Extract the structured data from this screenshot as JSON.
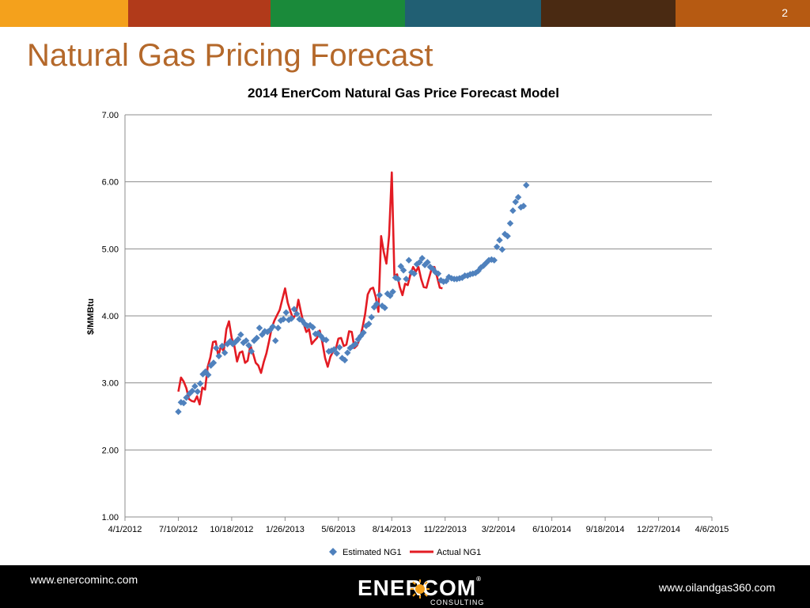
{
  "slide_number": "2",
  "slide_title": "Natural Gas Pricing Forecast",
  "top_bar_colors": [
    "#f4a11c",
    "#b13a1a",
    "#1a8a3a",
    "#215f73",
    "#4a2a12",
    "#b65a12"
  ],
  "footer": {
    "left_url": "www.enercominc.com",
    "right_url": "www.oilandgas360.com",
    "logo_text": "ENERCOM",
    "logo_registered": "®",
    "logo_sub": "CONSULTING"
  },
  "chart_data": {
    "type": "scatter",
    "title": "2014 EnerCom Natural Gas Price Forecast Model",
    "xlabel": "",
    "ylabel": "$/MMBtu",
    "ylim": [
      1.0,
      7.0
    ],
    "xlim": [
      "2012-04-01",
      "2015-04-06"
    ],
    "y_ticks": [
      "1.00",
      "2.00",
      "3.00",
      "4.00",
      "5.00",
      "6.00",
      "7.00"
    ],
    "x_ticks": [
      {
        "date": "2012-04-01",
        "label": "4/1/2012"
      },
      {
        "date": "2012-07-10",
        "label": "7/10/2012"
      },
      {
        "date": "2012-10-18",
        "label": "10/18/2012"
      },
      {
        "date": "2013-01-26",
        "label": "1/26/2013"
      },
      {
        "date": "2013-05-06",
        "label": "5/6/2013"
      },
      {
        "date": "2013-08-14",
        "label": "8/14/2013"
      },
      {
        "date": "2013-11-22",
        "label": "11/22/2013"
      },
      {
        "date": "2014-03-02",
        "label": "3/2/2014"
      },
      {
        "date": "2014-06-10",
        "label": "6/10/2014"
      },
      {
        "date": "2014-09-18",
        "label": "9/18/2014"
      },
      {
        "date": "2014-12-27",
        "label": "12/27/2014"
      },
      {
        "date": "2015-04-06",
        "label": "4/6/2015"
      }
    ],
    "grid": "horizontal",
    "legend_position": "bottom",
    "series": [
      {
        "name": "Estimated NG1",
        "style": "diamond-markers",
        "color": "#4f81bd",
        "points": [
          [
            "2012-07-10",
            2.57
          ],
          [
            "2012-07-15",
            2.71
          ],
          [
            "2012-07-20",
            2.7
          ],
          [
            "2012-07-25",
            2.78
          ],
          [
            "2012-07-31",
            2.84
          ],
          [
            "2012-08-05",
            2.88
          ],
          [
            "2012-08-10",
            2.95
          ],
          [
            "2012-08-15",
            2.87
          ],
          [
            "2012-08-20",
            2.99
          ],
          [
            "2012-08-25",
            3.13
          ],
          [
            "2012-08-30",
            3.17
          ],
          [
            "2012-09-04",
            3.12
          ],
          [
            "2012-09-09",
            3.26
          ],
          [
            "2012-09-14",
            3.3
          ],
          [
            "2012-09-19",
            3.52
          ],
          [
            "2012-09-24",
            3.4
          ],
          [
            "2012-09-30",
            3.55
          ],
          [
            "2012-10-05",
            3.45
          ],
          [
            "2012-10-10",
            3.58
          ],
          [
            "2012-10-15",
            3.62
          ],
          [
            "2012-10-20",
            3.58
          ],
          [
            "2012-10-25",
            3.61
          ],
          [
            "2012-10-30",
            3.65
          ],
          [
            "2012-11-04",
            3.72
          ],
          [
            "2012-11-09",
            3.6
          ],
          [
            "2012-11-14",
            3.63
          ],
          [
            "2012-11-19",
            3.56
          ],
          [
            "2012-11-24",
            3.47
          ],
          [
            "2012-11-29",
            3.63
          ],
          [
            "2012-12-04",
            3.67
          ],
          [
            "2012-12-09",
            3.82
          ],
          [
            "2012-12-14",
            3.72
          ],
          [
            "2012-12-19",
            3.77
          ],
          [
            "2012-12-24",
            3.76
          ],
          [
            "2012-12-29",
            3.79
          ],
          [
            "2013-01-03",
            3.84
          ],
          [
            "2013-01-08",
            3.63
          ],
          [
            "2013-01-13",
            3.82
          ],
          [
            "2013-01-18",
            3.93
          ],
          [
            "2013-01-23",
            3.95
          ],
          [
            "2013-01-28",
            4.05
          ],
          [
            "2013-02-02",
            3.94
          ],
          [
            "2013-02-07",
            3.96
          ],
          [
            "2013-02-12",
            4.1
          ],
          [
            "2013-02-17",
            4.03
          ],
          [
            "2013-02-22",
            3.95
          ],
          [
            "2013-02-27",
            3.93
          ],
          [
            "2013-03-04",
            3.88
          ],
          [
            "2013-03-09",
            3.85
          ],
          [
            "2013-03-14",
            3.86
          ],
          [
            "2013-03-19",
            3.83
          ],
          [
            "2013-03-24",
            3.73
          ],
          [
            "2013-03-29",
            3.74
          ],
          [
            "2013-04-03",
            3.7
          ],
          [
            "2013-04-08",
            3.65
          ],
          [
            "2013-04-13",
            3.64
          ],
          [
            "2013-04-18",
            3.47
          ],
          [
            "2013-04-23",
            3.48
          ],
          [
            "2013-04-28",
            3.5
          ],
          [
            "2013-05-03",
            3.44
          ],
          [
            "2013-05-08",
            3.53
          ],
          [
            "2013-05-13",
            3.37
          ],
          [
            "2013-05-18",
            3.34
          ],
          [
            "2013-05-23",
            3.45
          ],
          [
            "2013-05-28",
            3.52
          ],
          [
            "2013-06-02",
            3.55
          ],
          [
            "2013-06-07",
            3.58
          ],
          [
            "2013-06-12",
            3.65
          ],
          [
            "2013-06-17",
            3.7
          ],
          [
            "2013-06-22",
            3.75
          ],
          [
            "2013-06-27",
            3.85
          ],
          [
            "2013-07-02",
            3.88
          ],
          [
            "2013-07-07",
            3.98
          ],
          [
            "2013-07-12",
            4.13
          ],
          [
            "2013-07-17",
            4.18
          ],
          [
            "2013-07-22",
            4.31
          ],
          [
            "2013-07-27",
            4.15
          ],
          [
            "2013-08-01",
            4.12
          ],
          [
            "2013-08-06",
            4.33
          ],
          [
            "2013-08-11",
            4.3
          ],
          [
            "2013-08-16",
            4.36
          ],
          [
            "2013-08-21",
            4.57
          ],
          [
            "2013-08-26",
            4.55
          ],
          [
            "2013-08-31",
            4.74
          ],
          [
            "2013-09-05",
            4.68
          ],
          [
            "2013-09-10",
            4.55
          ],
          [
            "2013-09-15",
            4.83
          ],
          [
            "2013-09-20",
            4.65
          ],
          [
            "2013-09-25",
            4.63
          ],
          [
            "2013-09-30",
            4.77
          ],
          [
            "2013-10-05",
            4.8
          ],
          [
            "2013-10-10",
            4.86
          ],
          [
            "2013-10-15",
            4.76
          ],
          [
            "2013-10-20",
            4.8
          ],
          [
            "2013-10-25",
            4.73
          ],
          [
            "2013-10-30",
            4.7
          ],
          [
            "2013-11-04",
            4.65
          ],
          [
            "2013-11-09",
            4.63
          ],
          [
            "2013-11-14",
            4.53
          ],
          [
            "2013-11-19",
            4.51
          ],
          [
            "2013-11-24",
            4.52
          ],
          [
            "2013-11-29",
            4.58
          ],
          [
            "2013-12-04",
            4.56
          ],
          [
            "2013-12-09",
            4.55
          ],
          [
            "2013-12-14",
            4.55
          ],
          [
            "2013-12-19",
            4.56
          ],
          [
            "2013-12-24",
            4.57
          ],
          [
            "2013-12-29",
            4.6
          ],
          [
            "2014-01-03",
            4.6
          ],
          [
            "2014-01-08",
            4.62
          ],
          [
            "2014-01-13",
            4.63
          ],
          [
            "2014-01-18",
            4.64
          ],
          [
            "2014-01-23",
            4.67
          ],
          [
            "2014-01-28",
            4.72
          ],
          [
            "2014-02-02",
            4.75
          ],
          [
            "2014-02-07",
            4.79
          ],
          [
            "2014-02-12",
            4.83
          ],
          [
            "2014-02-17",
            4.84
          ],
          [
            "2014-02-22",
            4.83
          ],
          [
            "2014-02-27",
            5.03
          ],
          [
            "2014-03-04",
            5.13
          ],
          [
            "2014-03-09",
            4.99
          ],
          [
            "2014-03-14",
            5.22
          ],
          [
            "2014-03-19",
            5.19
          ],
          [
            "2014-03-24",
            5.38
          ],
          [
            "2014-03-29",
            5.57
          ],
          [
            "2014-04-03",
            5.7
          ],
          [
            "2014-04-08",
            5.77
          ],
          [
            "2014-04-13",
            5.62
          ],
          [
            "2014-04-18",
            5.64
          ],
          [
            "2014-04-23",
            5.95
          ]
        ]
      },
      {
        "name": "Actual NG1",
        "style": "line",
        "color": "#e31b23",
        "points": [
          [
            "2012-07-10",
            2.87
          ],
          [
            "2012-07-15",
            3.08
          ],
          [
            "2012-07-20",
            3.02
          ],
          [
            "2012-07-25",
            2.92
          ],
          [
            "2012-07-30",
            2.76
          ],
          [
            "2012-08-04",
            2.73
          ],
          [
            "2012-08-09",
            2.72
          ],
          [
            "2012-08-14",
            2.8
          ],
          [
            "2012-08-19",
            2.68
          ],
          [
            "2012-08-24",
            2.93
          ],
          [
            "2012-08-29",
            2.9
          ],
          [
            "2012-09-03",
            3.24
          ],
          [
            "2012-09-08",
            3.38
          ],
          [
            "2012-09-13",
            3.61
          ],
          [
            "2012-09-18",
            3.62
          ],
          [
            "2012-09-23",
            3.4
          ],
          [
            "2012-09-28",
            3.55
          ],
          [
            "2012-10-03",
            3.47
          ],
          [
            "2012-10-08",
            3.8
          ],
          [
            "2012-10-13",
            3.92
          ],
          [
            "2012-10-18",
            3.67
          ],
          [
            "2012-10-23",
            3.55
          ],
          [
            "2012-10-28",
            3.32
          ],
          [
            "2012-11-02",
            3.45
          ],
          [
            "2012-11-07",
            3.47
          ],
          [
            "2012-11-12",
            3.3
          ],
          [
            "2012-11-17",
            3.33
          ],
          [
            "2012-11-22",
            3.56
          ],
          [
            "2012-11-27",
            3.44
          ],
          [
            "2012-12-02",
            3.3
          ],
          [
            "2012-12-07",
            3.26
          ],
          [
            "2012-12-12",
            3.15
          ],
          [
            "2012-12-17",
            3.31
          ],
          [
            "2012-12-22",
            3.44
          ],
          [
            "2012-12-27",
            3.62
          ],
          [
            "2013-01-01",
            3.82
          ],
          [
            "2013-01-06",
            3.93
          ],
          [
            "2013-01-11",
            4.01
          ],
          [
            "2013-01-16",
            4.09
          ],
          [
            "2013-01-21",
            4.25
          ],
          [
            "2013-01-26",
            4.41
          ],
          [
            "2013-01-31",
            4.2
          ],
          [
            "2013-02-05",
            4.07
          ],
          [
            "2013-02-10",
            3.96
          ],
          [
            "2013-02-15",
            4.02
          ],
          [
            "2013-02-20",
            4.24
          ],
          [
            "2013-02-25",
            4.05
          ],
          [
            "2013-03-02",
            3.88
          ],
          [
            "2013-03-07",
            3.76
          ],
          [
            "2013-03-12",
            3.8
          ],
          [
            "2013-03-17",
            3.58
          ],
          [
            "2013-03-22",
            3.63
          ],
          [
            "2013-03-27",
            3.67
          ],
          [
            "2013-04-01",
            3.78
          ],
          [
            "2013-04-06",
            3.6
          ],
          [
            "2013-04-11",
            3.37
          ],
          [
            "2013-04-16",
            3.24
          ],
          [
            "2013-04-21",
            3.39
          ],
          [
            "2013-04-26",
            3.47
          ],
          [
            "2013-05-01",
            3.5
          ],
          [
            "2013-05-06",
            3.66
          ],
          [
            "2013-05-11",
            3.67
          ],
          [
            "2013-05-16",
            3.55
          ],
          [
            "2013-05-21",
            3.57
          ],
          [
            "2013-05-26",
            3.77
          ],
          [
            "2013-05-31",
            3.76
          ],
          [
            "2013-06-05",
            3.52
          ],
          [
            "2013-06-10",
            3.56
          ],
          [
            "2013-06-15",
            3.66
          ],
          [
            "2013-06-20",
            3.82
          ],
          [
            "2013-06-25",
            4.02
          ],
          [
            "2013-06-30",
            4.32
          ],
          [
            "2013-07-05",
            4.4
          ],
          [
            "2013-07-10",
            4.42
          ],
          [
            "2013-07-15",
            4.28
          ],
          [
            "2013-07-20",
            4.06
          ],
          [
            "2013-07-25",
            5.19
          ],
          [
            "2013-07-30",
            4.95
          ],
          [
            "2013-08-04",
            4.78
          ],
          [
            "2013-08-09",
            5.2
          ],
          [
            "2013-08-14",
            6.14
          ],
          [
            "2013-08-19",
            4.6
          ],
          [
            "2013-08-24",
            4.62
          ],
          [
            "2013-08-29",
            4.43
          ],
          [
            "2013-09-03",
            4.31
          ],
          [
            "2013-09-08",
            4.48
          ],
          [
            "2013-09-13",
            4.46
          ],
          [
            "2013-09-18",
            4.62
          ],
          [
            "2013-09-23",
            4.73
          ],
          [
            "2013-09-28",
            4.66
          ],
          [
            "2013-10-03",
            4.73
          ],
          [
            "2013-10-08",
            4.55
          ],
          [
            "2013-10-13",
            4.43
          ],
          [
            "2013-10-18",
            4.42
          ],
          [
            "2013-10-23",
            4.57
          ],
          [
            "2013-10-28",
            4.71
          ],
          [
            "2013-11-02",
            4.73
          ],
          [
            "2013-11-07",
            4.58
          ],
          [
            "2013-11-12",
            4.42
          ],
          [
            "2013-11-17",
            4.41
          ]
        ]
      }
    ]
  }
}
